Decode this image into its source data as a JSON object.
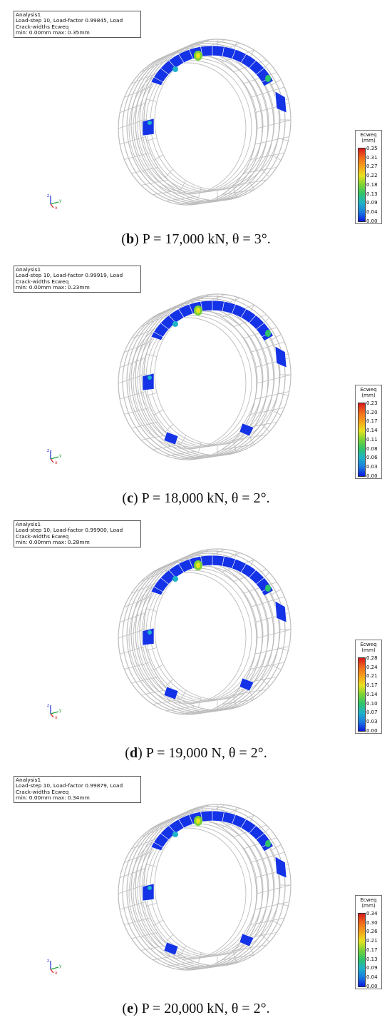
{
  "panels": [
    {
      "info": [
        "Analysis1",
        "Load-step 10, Load-factor 0.99845, Load",
        "Crack-widths Ecweq",
        "min: 0.00mm max: 0.35mm"
      ],
      "legend_title": "Ecweq\n(mm)",
      "legend_values": [
        "0.35",
        "0.31",
        "0.27",
        "0.22",
        "0.18",
        "0.13",
        "0.09",
        "0.04",
        "0.00"
      ],
      "caption_letter": "b",
      "caption_text": " P = 17,000 kN, θ = 3°."
    },
    {
      "info": [
        "Analysis1",
        "Load-step 10, Load-factor 0.99919, Load",
        "Crack-widths Ecweq",
        "min: 0.00mm max: 0.23mm"
      ],
      "legend_title": "Ecweq\n(mm)",
      "legend_values": [
        "0.23",
        "0.20",
        "0.17",
        "0.14",
        "0.11",
        "0.08",
        "0.06",
        "0.03",
        "0.00"
      ],
      "caption_letter": "c",
      "caption_text": " P = 18,000 kN, θ = 2°."
    },
    {
      "info": [
        "Analysis1",
        "Load-step 10, Load-factor 0.99900, Load",
        "Crack-widths Ecweq",
        "min: 0.00mm max: 0.28mm"
      ],
      "legend_title": "Ecweq\n(mm)",
      "legend_values": [
        "0.28",
        "0.24",
        "0.21",
        "0.17",
        "0.14",
        "0.10",
        "0.07",
        "0.03",
        "0.00"
      ],
      "caption_letter": "d",
      "caption_text": " P = 19,000 N, θ = 2°."
    },
    {
      "info": [
        "Analysis1",
        "Load-step 10, Load-factor 0.99879, Load",
        "Crack-widths Ecweq",
        "min: 0.00mm max: 0.34mm"
      ],
      "legend_title": "Ecweq\n(mm)",
      "legend_values": [
        "0.34",
        "0.30",
        "0.26",
        "0.21",
        "0.17",
        "0.13",
        "0.09",
        "0.04",
        "0.00"
      ],
      "caption_letter": "e",
      "caption_text": " P = 20,000 kN, θ = 2°."
    }
  ],
  "axes_labels": [
    "z",
    "y",
    "x"
  ],
  "colors": {
    "legend_scale": [
      "#d7191c",
      "#f06a1c",
      "#f5a21a",
      "#e8e21f",
      "#7ad335",
      "#2fc46a",
      "#1fb2c9",
      "#1a7be0",
      "#0a18e0"
    ],
    "mesh": "#bdbdbd",
    "crack": "#1432e6"
  }
}
